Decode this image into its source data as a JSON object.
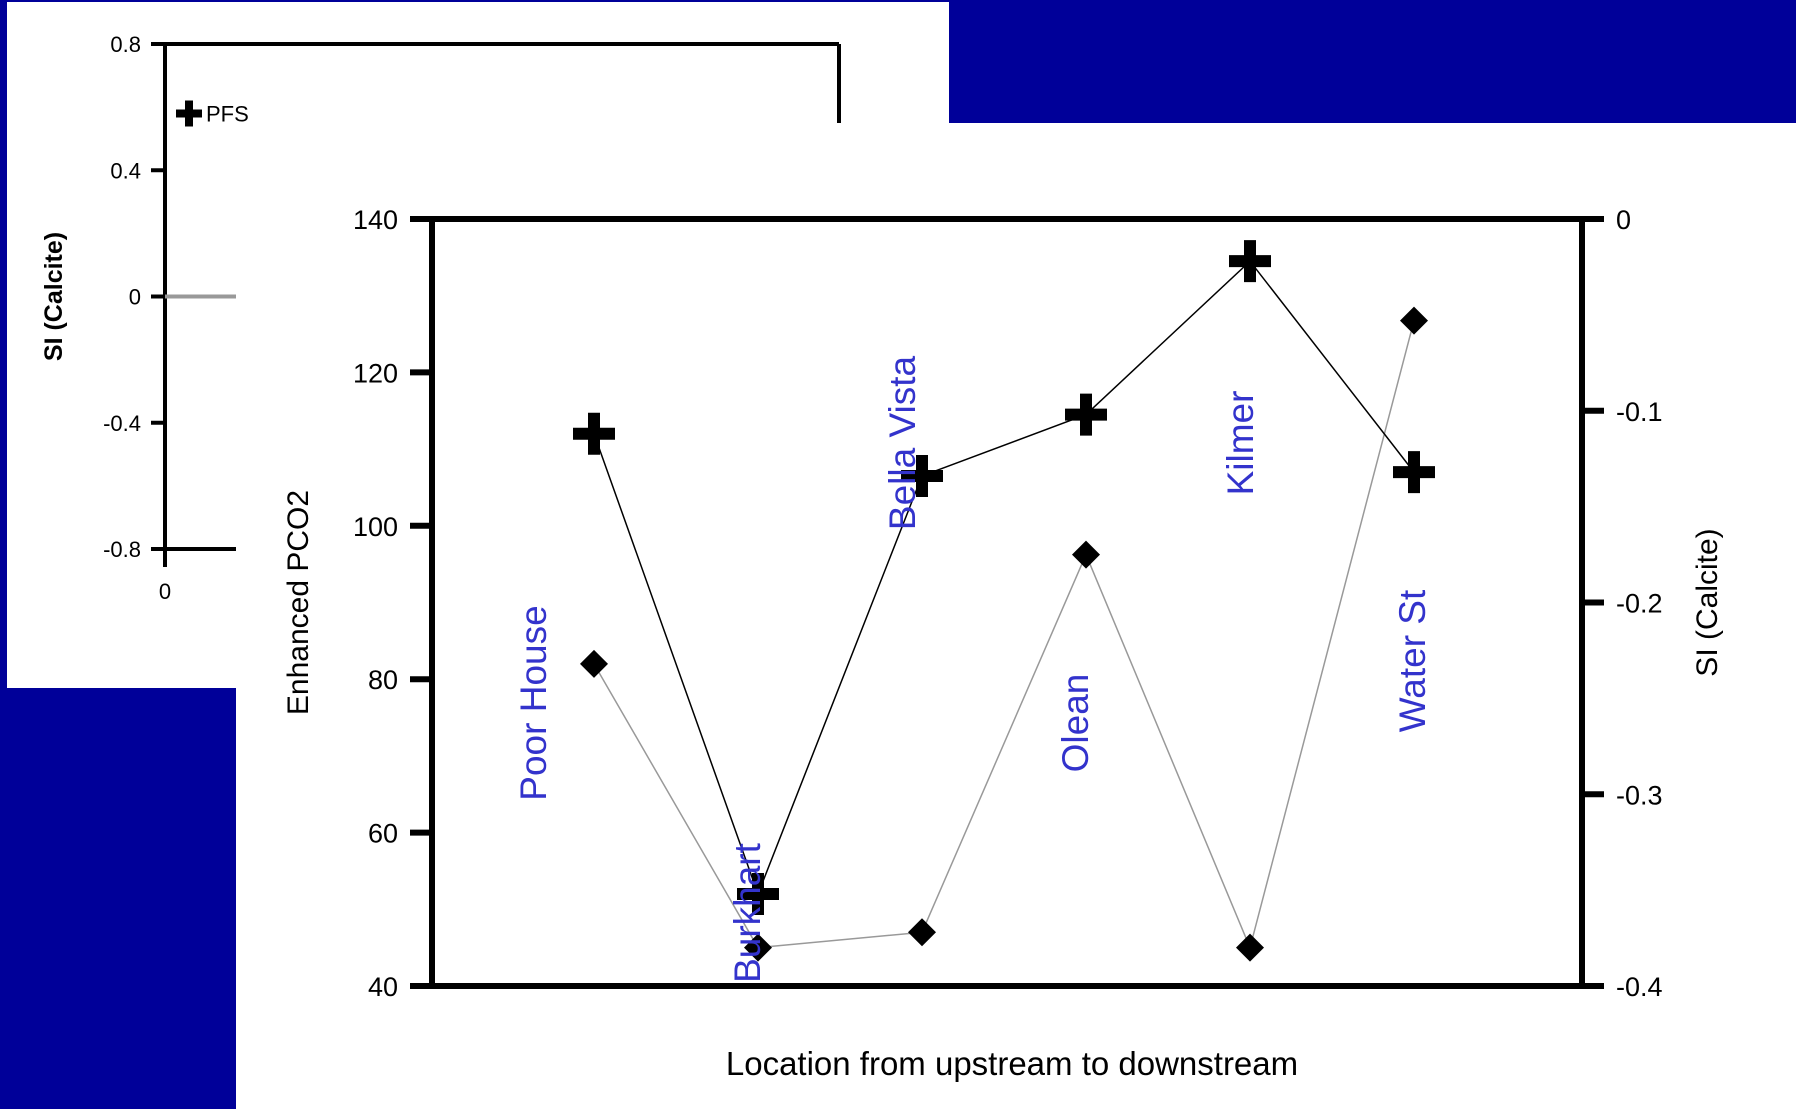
{
  "chart_data": [
    {
      "type": "scatter",
      "ylabel": "SI  (Calcite)",
      "ylim": [
        -0.8,
        0.8
      ],
      "yticks": [
        "0.8",
        "0.4",
        "0",
        "-0.4",
        "-0.8"
      ],
      "xticks": [
        "0"
      ],
      "points": [
        {
          "label": "PFS",
          "y": 0.58
        }
      ],
      "zero_line": 0
    },
    {
      "type": "line",
      "xlabel": "Location from upstream to downstream",
      "ylabel_left": "Enhanced PCO2",
      "ylabel_right": "SI (Calcite)",
      "ylim_left": [
        40,
        140
      ],
      "ylim_right": [
        -0.4,
        0
      ],
      "yticks_left": [
        "40",
        "60",
        "80",
        "100",
        "120",
        "140"
      ],
      "yticks_right": [
        "-0.4",
        "-0.3",
        "-0.2",
        "-0.1",
        "0"
      ],
      "categories": [
        "Poor House",
        "Burkhart",
        "Bella Vista",
        "Olean",
        "Kilmer",
        "Water St"
      ],
      "series": [
        {
          "marker": "cross",
          "axis": "left",
          "color": "#000000",
          "values": [
            112,
            52,
            106.5,
            114.5,
            134.5,
            107
          ]
        },
        {
          "marker": "diamond",
          "axis": "right",
          "color": "#999999",
          "values": [
            -0.232,
            -0.38,
            -0.372,
            -0.175,
            -0.38,
            -0.053
          ]
        }
      ],
      "label_color": "#3333cc"
    }
  ]
}
